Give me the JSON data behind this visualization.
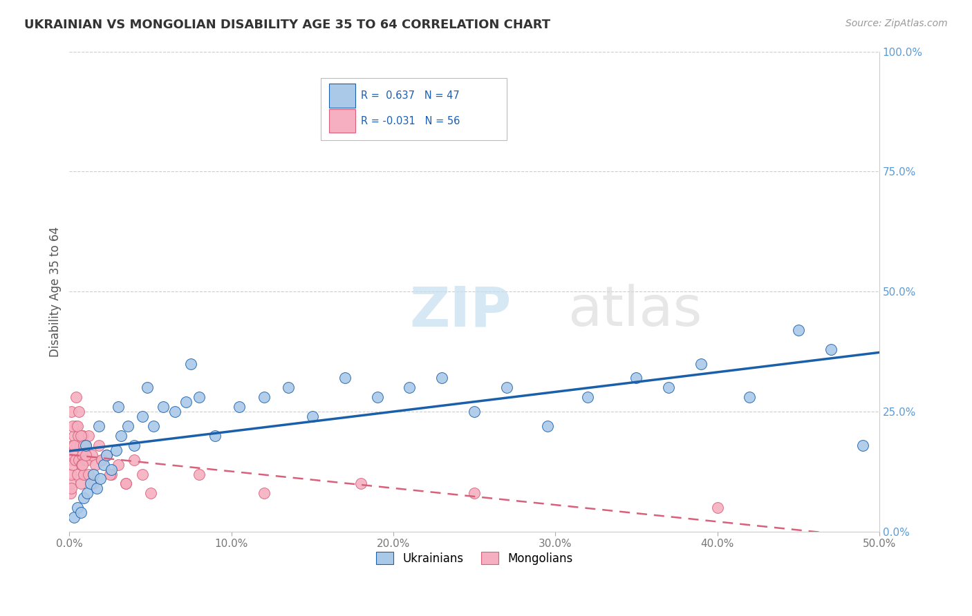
{
  "title": "UKRAINIAN VS MONGOLIAN DISABILITY AGE 35 TO 64 CORRELATION CHART",
  "source": "Source: ZipAtlas.com",
  "ylabel": "Disability Age 35 to 64",
  "yticks": [
    "0.0%",
    "25.0%",
    "50.0%",
    "75.0%",
    "100.0%"
  ],
  "ytick_vals": [
    0,
    25,
    50,
    75,
    100
  ],
  "xticks": [
    0,
    10,
    20,
    30,
    40,
    50
  ],
  "xtick_labels": [
    "0.0%",
    "10.0%",
    "20.0%",
    "30.0%",
    "40.0%",
    "50.0%"
  ],
  "xlim": [
    0,
    50
  ],
  "ylim": [
    0,
    100
  ],
  "legend_r1": "R =  0.637",
  "legend_n1": "N = 47",
  "legend_r2": "R = -0.031",
  "legend_n2": "N = 56",
  "ukrainian_color": "#aac9e8",
  "mongolian_color": "#f5afc0",
  "trendline_ukrainian_color": "#1a5faa",
  "trendline_mongolian_color": "#d9607a",
  "ytick_color": "#5b9bd5",
  "xtick_color": "#777777",
  "watermark_zip": "ZIP",
  "watermark_atlas": "atlas",
  "ukrainians_x": [
    0.3,
    0.5,
    0.7,
    0.9,
    1.1,
    1.3,
    1.5,
    1.7,
    1.9,
    2.1,
    2.3,
    2.6,
    2.9,
    3.2,
    3.6,
    4.0,
    4.5,
    5.2,
    5.8,
    6.5,
    7.2,
    8.0,
    9.0,
    10.5,
    12.0,
    13.5,
    15.0,
    17.0,
    19.0,
    21.0,
    23.0,
    25.0,
    27.0,
    29.5,
    32.0,
    35.0,
    37.0,
    39.0,
    42.0,
    45.0,
    47.0,
    1.0,
    1.8,
    3.0,
    4.8,
    7.5,
    49.0
  ],
  "ukrainians_y": [
    3,
    5,
    4,
    7,
    8,
    10,
    12,
    9,
    11,
    14,
    16,
    13,
    17,
    20,
    22,
    18,
    24,
    22,
    26,
    25,
    27,
    28,
    20,
    26,
    28,
    30,
    24,
    32,
    28,
    30,
    32,
    25,
    30,
    22,
    28,
    32,
    30,
    35,
    28,
    42,
    38,
    18,
    22,
    26,
    30,
    35,
    18
  ],
  "mongolians_x": [
    0.05,
    0.08,
    0.1,
    0.12,
    0.15,
    0.18,
    0.2,
    0.25,
    0.3,
    0.35,
    0.4,
    0.45,
    0.5,
    0.55,
    0.6,
    0.65,
    0.7,
    0.75,
    0.8,
    0.85,
    0.9,
    0.95,
    1.0,
    1.1,
    1.2,
    1.4,
    1.6,
    1.8,
    2.0,
    2.3,
    2.6,
    3.0,
    3.5,
    4.0,
    4.5,
    0.1,
    0.2,
    0.3,
    0.4,
    0.5,
    0.6,
    0.7,
    0.8,
    0.9,
    1.0,
    1.2,
    1.5,
    2.0,
    2.5,
    3.5,
    5.0,
    8.0,
    12.0,
    18.0,
    25.0,
    40.0
  ],
  "mongolians_y": [
    8,
    10,
    9,
    12,
    15,
    18,
    14,
    16,
    20,
    15,
    22,
    18,
    12,
    20,
    15,
    18,
    10,
    14,
    16,
    20,
    12,
    15,
    18,
    15,
    20,
    16,
    14,
    18,
    15,
    16,
    12,
    14,
    10,
    15,
    12,
    25,
    22,
    18,
    28,
    22,
    25,
    20,
    14,
    18,
    16,
    12,
    10,
    15,
    12,
    10,
    8,
    12,
    8,
    10,
    8,
    5
  ]
}
